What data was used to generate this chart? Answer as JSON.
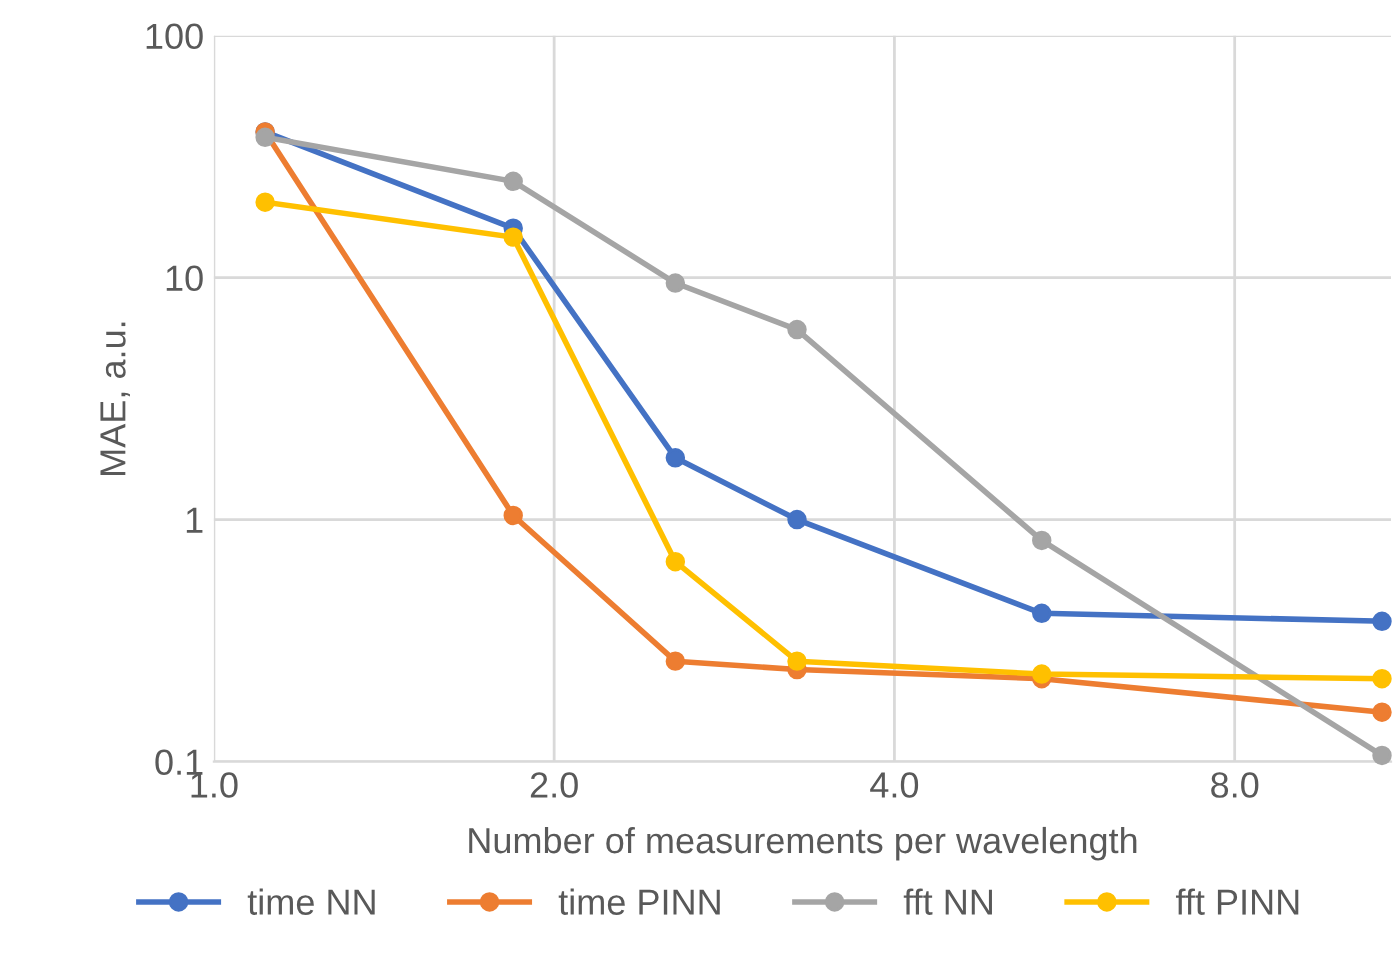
{
  "chart_data": {
    "type": "line",
    "xlabel": "Number of measurements per wavelength",
    "ylabel": "MAE, a.u.",
    "x": [
      1.11,
      1.84,
      2.56,
      3.28,
      5.4,
      10.8
    ],
    "series": [
      {
        "name": "time NN",
        "color": "#4472c4",
        "values": [
          40,
          16,
          1.8,
          1.0,
          0.41,
          0.38
        ]
      },
      {
        "name": "time PINN",
        "color": "#ed7d31",
        "values": [
          40,
          1.04,
          0.26,
          0.24,
          0.22,
          0.16
        ]
      },
      {
        "name": "fft NN",
        "color": "#a5a5a5",
        "values": [
          38,
          25,
          9.5,
          6.1,
          0.82,
          0.106
        ]
      },
      {
        "name": "fft PINN",
        "color": "#ffc000",
        "values": [
          20.5,
          14.7,
          0.67,
          0.26,
          0.23,
          0.22
        ]
      }
    ],
    "log": "xy",
    "xlim": [
      1,
      11
    ],
    "xticks": [
      {
        "value": 1,
        "label": "1.0"
      },
      {
        "value": 2,
        "label": "2.0"
      },
      {
        "value": 4,
        "label": "4.0"
      },
      {
        "value": 8,
        "label": "8.0"
      }
    ],
    "ylim": [
      0.1,
      100
    ],
    "yticks": [
      0.1,
      1,
      10,
      100
    ],
    "grid": true,
    "legend": "bottom",
    "marker": "circle",
    "line_style": "solid"
  }
}
